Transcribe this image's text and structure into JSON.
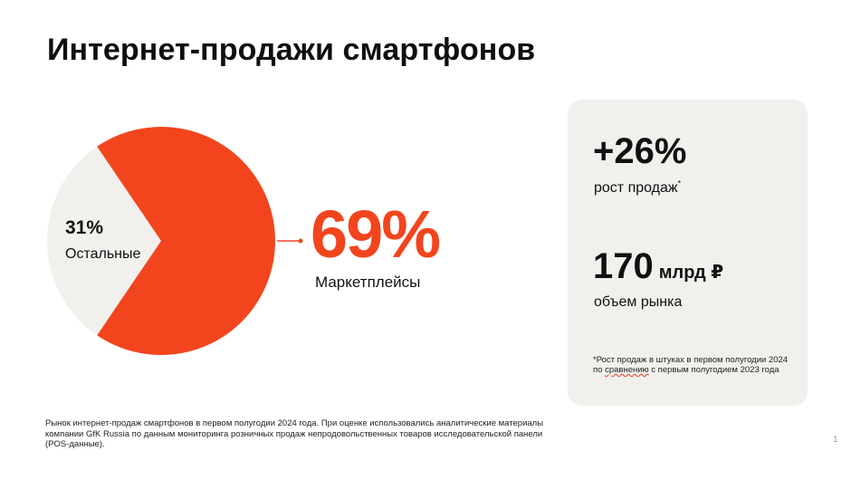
{
  "title": "Интернет-продажи смартфонов",
  "chart_data": {
    "type": "pie",
    "slices": [
      {
        "label": "Маркетплейсы",
        "value": 69,
        "display": "69%",
        "color": "#f2451e"
      },
      {
        "label": "Остальные",
        "value": 31,
        "display": "31%",
        "color": "#f1f0ed"
      }
    ]
  },
  "stats": {
    "growth_value": "+26%",
    "growth_label": "рост продаж",
    "growth_mark": "*",
    "market_value": "170",
    "market_unit": "млрд ₽",
    "market_label": "объем рынка",
    "footnote_a": "*Рост продаж в штуках в первом полугодии 2024 по ",
    "footnote_b": "сравнению",
    "footnote_c": " с первым полугодием 2023 года"
  },
  "source_note": "Рынок интернет-продаж смартфонов в первом полугодии 2024 года. При оценке использовались аналитические материалы компании GfK Russia по данным мониторинга розничных продаж непродовольственных товаров исследовательской панели (POS-данные).",
  "page_number": "1"
}
